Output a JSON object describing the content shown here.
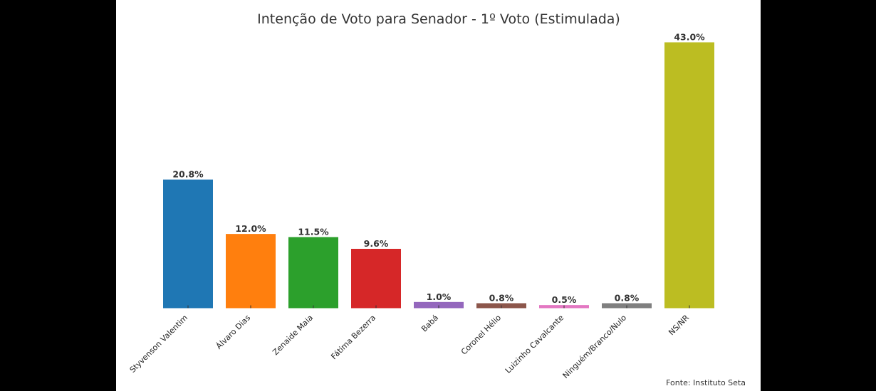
{
  "chart_data": {
    "type": "bar",
    "title": "Intenção de Voto para Senador - 1º Voto (Estimulada)",
    "categories": [
      "Styvenson Valentim",
      "Álvaro Dias",
      "Zenaide Maia",
      "Fátima Bezerra",
      "Babá",
      "Coronel Hélio",
      "Luizinho Cavalcante",
      "Ninguém/Branco/Nulo",
      "NS/NR"
    ],
    "values": [
      20.8,
      12.0,
      11.5,
      9.6,
      1.0,
      0.8,
      0.5,
      0.8,
      43.0
    ],
    "value_labels": [
      "20.8%",
      "12.0%",
      "11.5%",
      "9.6%",
      "1.0%",
      "0.8%",
      "0.5%",
      "0.8%",
      "43.0%"
    ],
    "colors": [
      "#1f77b4",
      "#ff7f0e",
      "#2ca02c",
      "#d62728",
      "#9467bd",
      "#8c564b",
      "#e377c2",
      "#7f7f7f",
      "#bcbd22"
    ],
    "ylim": [
      0,
      43.0
    ],
    "grid": false,
    "xlabel": "",
    "ylabel": ""
  },
  "source": "Fonte: Instituto Seta"
}
